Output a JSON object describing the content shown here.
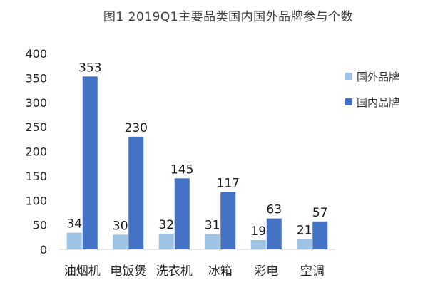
{
  "title": "图1 2019Q1主要品类国内国外品牌参与个数",
  "chart_data": {
    "type": "bar",
    "categories": [
      "油烟机",
      "电饭煲",
      "洗衣机",
      "冰箱",
      "彩电",
      "空调"
    ],
    "series": [
      {
        "name": "国外品牌",
        "values": [
          34,
          30,
          32,
          31,
          19,
          21
        ],
        "color": "#9DC3E6"
      },
      {
        "name": "国内品牌",
        "values": [
          353,
          230,
          145,
          117,
          63,
          57
        ],
        "color": "#4472C4"
      }
    ],
    "ylim": [
      0,
      400
    ],
    "yticks": [
      0,
      50,
      100,
      150,
      200,
      250,
      300,
      350,
      400
    ],
    "grid": false,
    "legend": "right"
  }
}
